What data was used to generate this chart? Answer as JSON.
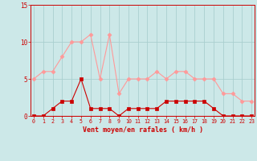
{
  "hours": [
    0,
    1,
    2,
    3,
    4,
    5,
    6,
    7,
    8,
    9,
    10,
    11,
    12,
    13,
    14,
    15,
    16,
    17,
    18,
    19,
    20,
    21,
    22,
    23
  ],
  "wind_avg": [
    0,
    0,
    1,
    2,
    2,
    5,
    1,
    1,
    1,
    0,
    1,
    1,
    1,
    1,
    2,
    2,
    2,
    2,
    2,
    1,
    0,
    0,
    0,
    0
  ],
  "wind_gust": [
    5,
    6,
    6,
    8,
    10,
    10,
    11,
    5,
    11,
    3,
    5,
    5,
    5,
    6,
    5,
    6,
    6,
    5,
    5,
    5,
    3,
    3,
    2,
    2
  ],
  "bg_color": "#cce8e8",
  "grid_color": "#aacfcf",
  "avg_color": "#cc0000",
  "gust_color": "#ff9999",
  "tick_color": "#cc0000",
  "ylabel_major": [
    0,
    5,
    10,
    15
  ],
  "ylim": [
    0,
    15
  ],
  "xlim": [
    -0.3,
    23.3
  ],
  "xlabel": "Vent moyen/en rafales ( km/h )"
}
